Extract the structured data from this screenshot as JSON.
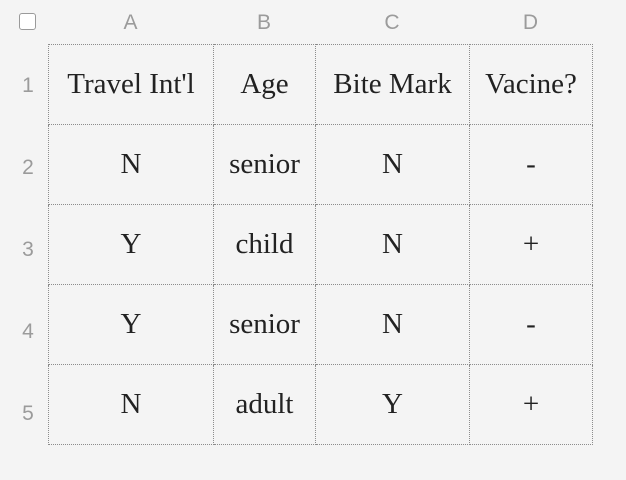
{
  "columns": [
    "A",
    "B",
    "C",
    "D"
  ],
  "rows": [
    "1",
    "2",
    "3",
    "4",
    "5"
  ],
  "cells": [
    [
      "Travel Int'l",
      "Age",
      "Bite Mark",
      "Vacine?"
    ],
    [
      "N",
      "senior",
      "N",
      "-"
    ],
    [
      "Y",
      "child",
      "N",
      "+"
    ],
    [
      "Y",
      "senior",
      "N",
      "-"
    ],
    [
      "N",
      "adult",
      "Y",
      "+"
    ]
  ]
}
